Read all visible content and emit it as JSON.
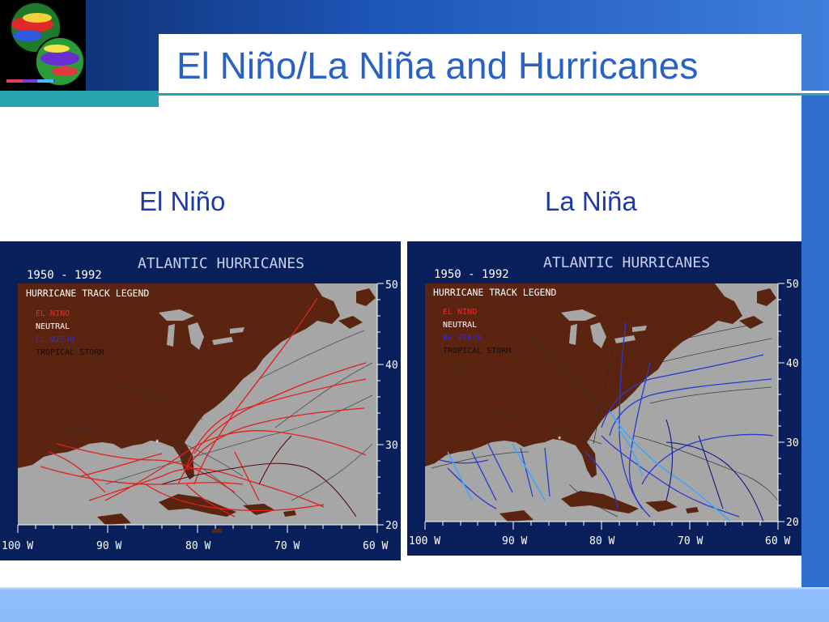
{
  "slide": {
    "title": "El Niño/La Niña and Hurricanes",
    "left_caption": "El Niño",
    "right_caption": "La Niña"
  },
  "maps": [
    {
      "title": "ATLANTIC HURRICANES",
      "years": "1950 - 1992",
      "legend_title": "HURRICANE TRACK LEGEND",
      "legend": [
        {
          "label": "EL NINO",
          "color": "#ff2020"
        },
        {
          "label": "NEUTRAL",
          "color": "#ffffff"
        },
        {
          "label": "EL VIEJO",
          "color": "#2a2aff"
        },
        {
          "label": "TROPICAL STORM",
          "color": "#111111"
        }
      ],
      "lat_labels": [
        "50",
        "40",
        "30",
        "20"
      ],
      "lon_labels": [
        "100 W",
        "90 W",
        "80 W",
        "70 W",
        "60 W"
      ]
    },
    {
      "title": "ATLANTIC HURRICANES",
      "years": "1950 - 1992",
      "legend_title": "HURRICANE TRACK LEGEND",
      "legend": [
        {
          "label": "EL NINO",
          "color": "#ff2020"
        },
        {
          "label": "NEUTRAL",
          "color": "#ffffff"
        },
        {
          "label": "EL VIEJO",
          "color": "#2a2aff"
        },
        {
          "label": "TROPICAL STORM",
          "color": "#111111"
        }
      ],
      "lat_labels": [
        "50",
        "40",
        "30",
        "20"
      ],
      "lon_labels": [
        "100 W",
        "90 W",
        "80 W",
        "70 W",
        "60 W"
      ]
    }
  ],
  "colors": {
    "title_blue": "#2a61c4",
    "land": "#5b2410",
    "ocean": "#a6a6a6",
    "map_frame": "#081f5c",
    "accent_teal": "#2aa3b0"
  }
}
